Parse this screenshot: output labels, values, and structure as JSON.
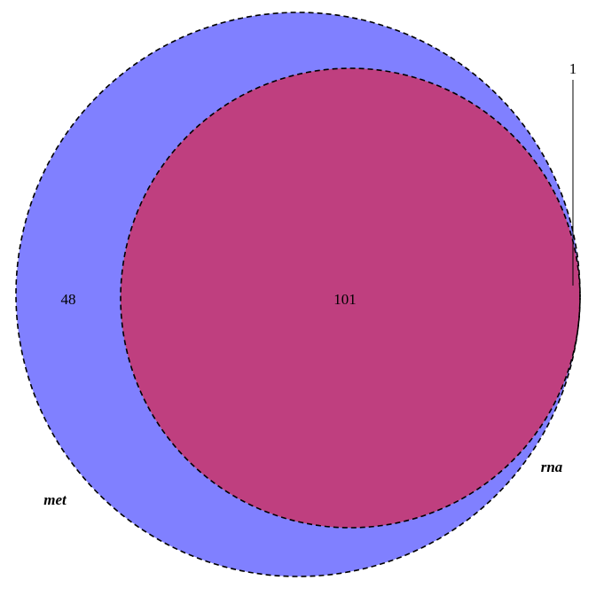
{
  "sets": [
    {
      "name": "met",
      "size": 149,
      "fill": "#8080ff"
    },
    {
      "name": "rna",
      "size": 102,
      "fill": "#ff7f7f"
    }
  ],
  "overlap_fill": "#bf3f7f",
  "outline": {
    "color": "#000000",
    "style": "dashed"
  },
  "regions": {
    "met_only": "48",
    "intersection": "101",
    "rna_only": "1"
  }
}
